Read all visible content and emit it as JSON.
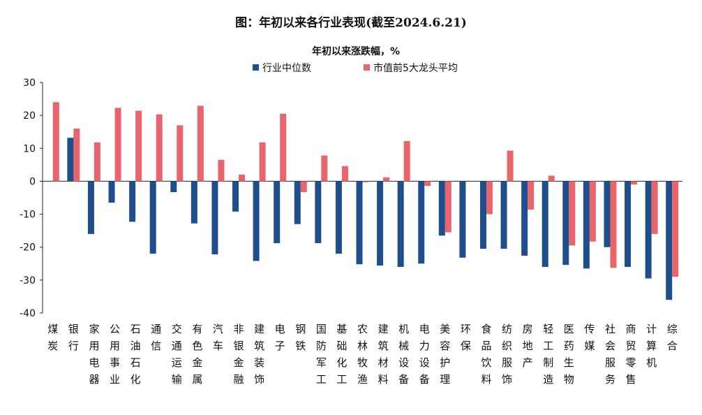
{
  "chart_data": {
    "type": "bar",
    "title": "图：年初以来各行业表现(截至2024.6.21)",
    "subtitle": "年初以来涨跌幅，%",
    "ylim": [
      -40,
      30
    ],
    "yticks": [
      30,
      20,
      10,
      0,
      -10,
      -20,
      -30,
      -40
    ],
    "legend_position": "top-center",
    "categories": [
      "煤炭",
      "银行",
      "家用电器",
      "公用事业",
      "石油石化",
      "通信",
      "交通运输",
      "有色金属",
      "汽车",
      "非银金融",
      "建筑装饰",
      "电子",
      "钢铁",
      "国防军工",
      "基础化工",
      "农林牧渔",
      "建筑材料",
      "机械设备",
      "电力设备",
      "美容护理",
      "环保",
      "食品饮料",
      "纺织服饰",
      "房地产",
      "轻工制造",
      "医药生物",
      "传媒",
      "社会服务",
      "商贸零售",
      "计算机",
      "综合"
    ],
    "series": [
      {
        "name": "行业中位数",
        "color": "#1f4e8c",
        "values": [
          0,
          13.2,
          -16,
          -6.5,
          -12.3,
          -22,
          -3.3,
          -12.8,
          -22.2,
          -9.2,
          -24.2,
          -18.8,
          -13,
          -18.8,
          -22,
          -25.2,
          -25.6,
          -26,
          -25,
          -16.5,
          -23.2,
          -20.5,
          -20.5,
          -22.6,
          -26,
          -25.4,
          -26.5,
          -20,
          -26,
          -29.5,
          -36
        ]
      },
      {
        "name": "市值前5大龙头平均",
        "color": "#e8666b",
        "values": [
          24,
          16,
          11.8,
          22.3,
          21.4,
          20.3,
          17,
          22.9,
          6.5,
          2,
          11.8,
          20.5,
          -3.3,
          7.8,
          4.6,
          -0.3,
          1.2,
          12.2,
          -1.4,
          -15.5,
          0,
          -10,
          9.3,
          -8.6,
          1.7,
          -19.5,
          -18.3,
          -26.3,
          -1,
          -16,
          -29
        ]
      }
    ]
  }
}
